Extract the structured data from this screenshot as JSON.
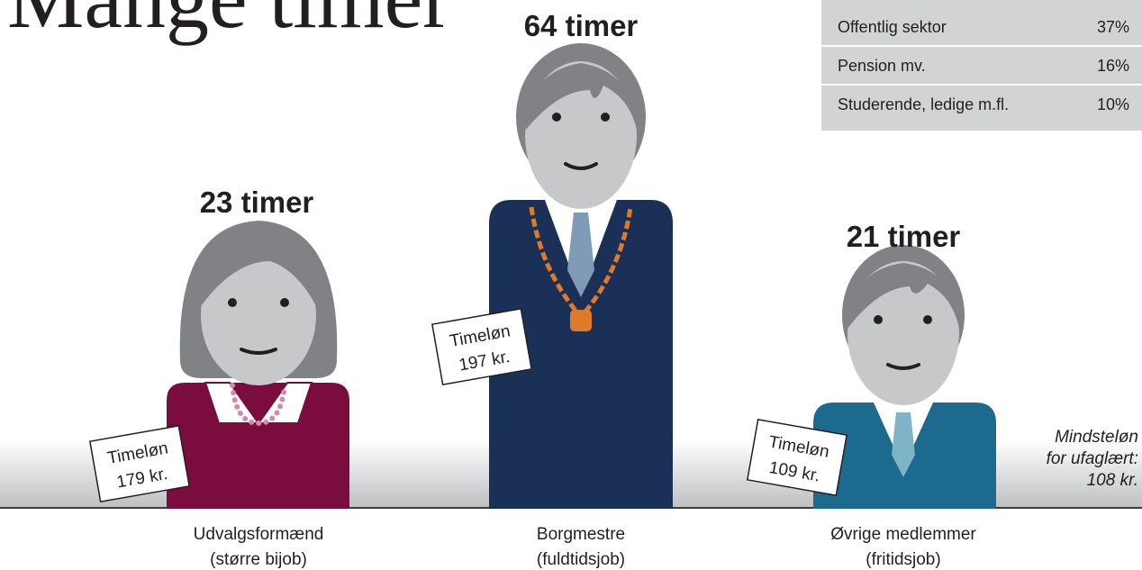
{
  "title": "Mange timer",
  "table": {
    "rows": [
      [
        "Offentlig sektor",
        "37%"
      ],
      [
        "Pension mv.",
        "16%"
      ],
      [
        "Studerende, ledige m.fl.",
        "10%"
      ]
    ]
  },
  "figures": [
    {
      "hours": "23 timer",
      "wage_label": "Timeløn",
      "wage": "179 kr.",
      "caption": [
        "Udvalgsformænd",
        "(større bijob)"
      ]
    },
    {
      "hours": "64 timer",
      "wage_label": "Timeløn",
      "wage": "197 kr.",
      "caption": [
        "Borgmestre",
        "(fuldtidsjob)"
      ]
    },
    {
      "hours": "21 timer",
      "wage_label": "Timeløn",
      "wage": "109 kr.",
      "caption": [
        "Øvrige medlemmer",
        "(fritidsjob)"
      ]
    }
  ],
  "note": [
    "Mindsteløn",
    "for ufaglært:",
    "108 kr."
  ]
}
